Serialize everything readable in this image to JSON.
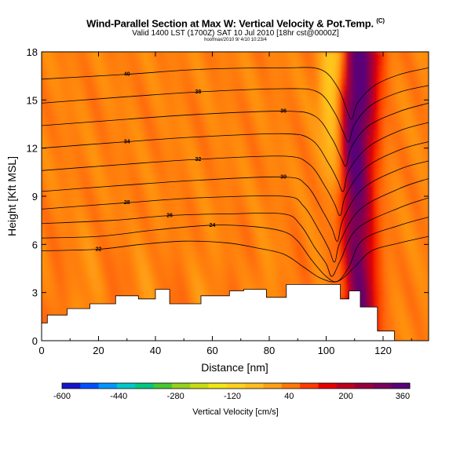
{
  "title": "Wind-Parallel Section at Max W: Vertical Velocity & Pot.Temp.",
  "title_mark": "(C)",
  "subtitle": "Valid 1400 LST (1700Z) SAT 10 Jul 2010 [18hr cst@0000Z]",
  "file_info": "hoofmax/2010 9/ 4/10 10:23/4",
  "chart_data": {
    "type": "heatmap",
    "title": "Wind-Parallel Section at Max W: Vertical Velocity & Pot.Temp.",
    "xlabel": "Distance [nm]",
    "ylabel": "Height [Kft MSL]",
    "xlim": [
      0,
      136
    ],
    "ylim": [
      0,
      18
    ],
    "x_ticks": [
      0,
      20,
      40,
      60,
      80,
      100,
      120
    ],
    "y_ticks": [
      0,
      3,
      6,
      9,
      12,
      15,
      18
    ],
    "grid": false,
    "legend": "bottom",
    "background_velocity_cms": 40,
    "updraft_core": {
      "peak_cms": 400,
      "path": [
        [
          112,
          18
        ],
        [
          111,
          15
        ],
        [
          110,
          12
        ],
        [
          109.5,
          9
        ],
        [
          109.5,
          6
        ],
        [
          110.5,
          3
        ]
      ],
      "half_width_nm": 4.5
    },
    "downdraft_band": {
      "min_cms": -250,
      "path": [
        [
          103,
          18
        ],
        [
          102,
          15
        ],
        [
          103,
          12
        ],
        [
          105,
          9
        ],
        [
          106,
          6
        ],
        [
          107,
          3
        ]
      ],
      "half_width_nm": 3
    },
    "terrain_kft": [
      [
        0,
        1.1
      ],
      [
        2,
        1.1
      ],
      [
        2,
        1.6
      ],
      [
        9,
        1.6
      ],
      [
        9,
        2.0
      ],
      [
        17,
        2.0
      ],
      [
        17,
        2.3
      ],
      [
        26,
        2.3
      ],
      [
        26,
        2.8
      ],
      [
        34,
        2.8
      ],
      [
        34,
        2.6
      ],
      [
        40,
        2.6
      ],
      [
        40,
        3.2
      ],
      [
        45,
        3.2
      ],
      [
        45,
        2.3
      ],
      [
        56,
        2.3
      ],
      [
        56,
        2.8
      ],
      [
        66,
        2.8
      ],
      [
        66,
        3.1
      ],
      [
        71,
        3.1
      ],
      [
        71,
        3.2
      ],
      [
        79,
        3.2
      ],
      [
        79,
        2.7
      ],
      [
        86,
        2.7
      ],
      [
        86,
        3.5
      ],
      [
        105,
        3.5
      ],
      [
        105,
        2.6
      ],
      [
        108,
        2.6
      ],
      [
        108,
        3.1
      ],
      [
        112,
        3.1
      ],
      [
        112,
        2.1
      ],
      [
        118,
        2.1
      ],
      [
        118,
        0.6
      ],
      [
        124,
        0.6
      ],
      [
        124,
        0.0
      ],
      [
        136,
        0.0
      ]
    ],
    "isentropes": [
      {
        "label": "40",
        "pts": [
          [
            0,
            16.3
          ],
          [
            30,
            16.6
          ],
          [
            55,
            16.9
          ],
          [
            85,
            17.0
          ],
          [
            98,
            16.9
          ],
          [
            104,
            15.8
          ],
          [
            107,
            14.5
          ],
          [
            109,
            13.8
          ],
          [
            111,
            14.8
          ],
          [
            117,
            15.9
          ],
          [
            126,
            16.6
          ],
          [
            136,
            17.0
          ]
        ]
      },
      {
        "label": "38",
        "pts": [
          [
            0,
            14.8
          ],
          [
            30,
            15.2
          ],
          [
            55,
            15.5
          ],
          [
            85,
            15.7
          ],
          [
            97,
            15.5
          ],
          [
            103,
            14.2
          ],
          [
            106,
            13.0
          ],
          [
            108,
            12.4
          ],
          [
            110,
            13.5
          ],
          [
            116,
            14.7
          ],
          [
            126,
            15.5
          ],
          [
            136,
            15.9
          ]
        ]
      },
      {
        "label": "36",
        "pts": [
          [
            0,
            13.4
          ],
          [
            30,
            13.8
          ],
          [
            55,
            14.1
          ],
          [
            85,
            14.3
          ],
          [
            96,
            14.0
          ],
          [
            102,
            12.6
          ],
          [
            105,
            11.5
          ],
          [
            107,
            10.9
          ],
          [
            109,
            12.1
          ],
          [
            115,
            13.4
          ],
          [
            126,
            14.3
          ],
          [
            136,
            14.8
          ]
        ]
      },
      {
        "label": "34",
        "pts": [
          [
            0,
            12.0
          ],
          [
            30,
            12.4
          ],
          [
            55,
            12.7
          ],
          [
            85,
            12.9
          ],
          [
            95,
            12.5
          ],
          [
            101,
            11.0
          ],
          [
            104,
            10.0
          ],
          [
            106,
            9.3
          ],
          [
            108,
            10.6
          ],
          [
            115,
            12.1
          ],
          [
            126,
            13.1
          ],
          [
            136,
            13.6
          ]
        ]
      },
      {
        "label": "32",
        "pts": [
          [
            0,
            10.6
          ],
          [
            30,
            11.0
          ],
          [
            55,
            11.3
          ],
          [
            85,
            11.5
          ],
          [
            94,
            11.0
          ],
          [
            100,
            9.5
          ],
          [
            103,
            8.5
          ],
          [
            105,
            7.8
          ],
          [
            107,
            9.1
          ],
          [
            114,
            10.8
          ],
          [
            126,
            11.9
          ],
          [
            136,
            12.4
          ]
        ]
      },
      {
        "label": "30",
        "pts": [
          [
            0,
            9.3
          ],
          [
            30,
            9.7
          ],
          [
            55,
            10.0
          ],
          [
            85,
            10.2
          ],
          [
            93,
            9.7
          ],
          [
            99,
            8.0
          ],
          [
            102,
            7.0
          ],
          [
            104,
            6.2
          ],
          [
            106,
            7.6
          ],
          [
            113,
            9.5
          ],
          [
            126,
            10.7
          ],
          [
            136,
            11.2
          ]
        ]
      },
      {
        "label": "28",
        "pts": [
          [
            0,
            8.2
          ],
          [
            30,
            8.6
          ],
          [
            55,
            8.9
          ],
          [
            85,
            9.0
          ],
          [
            92,
            8.4
          ],
          [
            98,
            6.7
          ],
          [
            101,
            5.7
          ],
          [
            103,
            4.9
          ],
          [
            105,
            6.2
          ],
          [
            112,
            8.2
          ],
          [
            126,
            9.5
          ],
          [
            136,
            10.1
          ]
        ]
      },
      {
        "label": "26",
        "pts": [
          [
            0,
            7.3
          ],
          [
            25,
            7.5
          ],
          [
            45,
            7.8
          ],
          [
            65,
            7.9
          ],
          [
            85,
            7.9
          ],
          [
            91,
            7.2
          ],
          [
            96,
            5.8
          ],
          [
            100,
            4.8
          ],
          [
            102,
            4.0
          ],
          [
            105,
            5.0
          ],
          [
            111,
            7.0
          ],
          [
            126,
            8.3
          ],
          [
            136,
            8.9
          ]
        ]
      },
      {
        "label": "24",
        "pts": [
          [
            0,
            6.4
          ],
          [
            20,
            6.5
          ],
          [
            40,
            6.9
          ],
          [
            60,
            7.2
          ],
          [
            75,
            7.1
          ],
          [
            85,
            6.8
          ],
          [
            90,
            6.2
          ],
          [
            95,
            5.0
          ],
          [
            100,
            4.0
          ],
          [
            104,
            3.7
          ],
          [
            108,
            4.6
          ],
          [
            113,
            6.3
          ],
          [
            126,
            7.2
          ],
          [
            136,
            7.7
          ]
        ]
      },
      {
        "label": "22",
        "pts": [
          [
            0,
            5.6
          ],
          [
            20,
            5.7
          ],
          [
            35,
            6.0
          ],
          [
            50,
            6.2
          ],
          [
            65,
            6.1
          ],
          [
            75,
            5.8
          ],
          [
            85,
            5.4
          ],
          [
            92,
            4.6
          ],
          [
            98,
            3.9
          ],
          [
            104,
            3.7
          ],
          [
            110,
            4.6
          ],
          [
            116,
            5.6
          ],
          [
            126,
            6.1
          ],
          [
            136,
            6.5
          ]
        ]
      }
    ],
    "colorbar": {
      "label": "Vertical Velocity [cm/s]",
      "min": -600,
      "max": 380,
      "ticks": [
        -600,
        -440,
        -280,
        -120,
        40,
        200,
        360
      ],
      "colors": [
        "#1414cc",
        "#0050ff",
        "#0096ff",
        "#00c8c8",
        "#00c880",
        "#46c832",
        "#96d21e",
        "#c8dc14",
        "#f0e614",
        "#ffd21e",
        "#ffbe1e",
        "#ffa014",
        "#ff780a",
        "#ff3c00",
        "#e60000",
        "#be001e",
        "#96003c",
        "#78005a",
        "#5a0078"
      ]
    }
  }
}
